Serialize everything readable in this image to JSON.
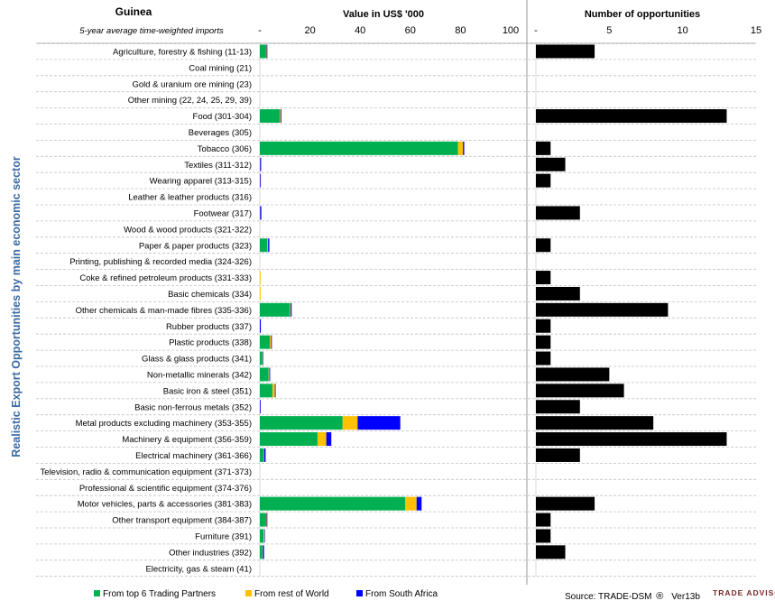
{
  "chart_data": {
    "type": "bar",
    "country": "Guinea",
    "subtitle": "5-year average time-weighted imports",
    "ylabel": "Realistic Export Opportunities by main economic sector",
    "categories": [
      "Agriculture, forestry & fishing (11-13)",
      "Coal mining (21)",
      "Gold & uranium ore mining (23)",
      "Other mining (22, 24, 25, 29, 39)",
      "Food (301-304)",
      "Beverages (305)",
      "Tobacco (306)",
      "Textiles (311-312)",
      "Wearing apparel (313-315)",
      "Leather & leather products (316)",
      "Footwear (317)",
      "Wood & wood products (321-322)",
      "Paper & paper products (323)",
      "Printing, publishing & recorded media (324-326)",
      "Coke & refined petroleum products (331-333)",
      "Basic chemicals (334)",
      "Other chemicals & man-made fibres (335-336)",
      "Rubber products (337)",
      "Plastic products (338)",
      "Glass & glass products (341)",
      "Non-metallic minerals (342)",
      "Basic iron & steel (351)",
      "Basic non-ferrous metals (352)",
      "Metal products excluding machinery (353-355)",
      "Machinery & equipment (356-359)",
      "Electrical machinery (361-366)",
      "Television, radio & communication equipment (371-373)",
      "Professional & scientific equipment (374-376)",
      "Motor vehicles, parts & accessories (381-383)",
      "Other transport equipment (384-387)",
      "Furniture (391)",
      "Other industries (392)",
      "Electricity, gas & steam (41)"
    ],
    "value_chart": {
      "title": "Value in US$ '000",
      "xlim": [
        0,
        100
      ],
      "ticks": [
        "-",
        "20",
        "40",
        "60",
        "80",
        "100"
      ],
      "stacked": true,
      "series": [
        {
          "name": "From top 6 Trading Partners",
          "color": "#00b050",
          "values": [
            2.5,
            0,
            0,
            0,
            8,
            0,
            79,
            0,
            0,
            0,
            0,
            0,
            3,
            0,
            0,
            0,
            12,
            0,
            4,
            1,
            3.5,
            5,
            0,
            33,
            23,
            1.5,
            0,
            0,
            58,
            2.5,
            1.5,
            1,
            0
          ]
        },
        {
          "name": "From rest of World",
          "color": "#ffc000",
          "values": [
            0.2,
            0,
            0,
            0,
            0.3,
            0,
            2,
            0.1,
            0.1,
            0,
            0.1,
            0,
            0.3,
            0,
            0.3,
            0.3,
            0.3,
            0,
            0.5,
            0.2,
            0.3,
            1,
            0,
            6,
            3.5,
            0.2,
            0,
            0,
            4.5,
            0.2,
            0.3,
            0.2,
            0
          ]
        },
        {
          "name": "From South Africa",
          "color": "#0000ff",
          "values": [
            0.3,
            0,
            0,
            0,
            0.3,
            0,
            0.5,
            0.4,
            0.3,
            0,
            0.5,
            0,
            0.5,
            0,
            0,
            0,
            0.4,
            0.4,
            0.3,
            0.2,
            0.3,
            0.3,
            0.3,
            17,
            2,
            0.6,
            0,
            0,
            2,
            0.3,
            0.2,
            0.5,
            0
          ]
        }
      ]
    },
    "count_chart": {
      "title": "Number of opportunities",
      "xlim": [
        0,
        15
      ],
      "ticks": [
        "-",
        "5",
        "10",
        "15"
      ],
      "color": "#000000",
      "values": [
        4,
        0,
        0,
        0,
        13,
        0,
        1,
        2,
        1,
        0,
        3,
        0,
        1,
        0,
        1,
        3,
        9,
        1,
        1,
        1,
        5,
        6,
        3,
        8,
        13,
        3,
        0,
        0,
        4,
        1,
        1,
        2,
        0
      ]
    },
    "legend_position": "bottom-left"
  },
  "footer": {
    "source": "Source: TRADE-DSM",
    "registered": "®",
    "version": "Ver13b",
    "logo_text": "TRADE ADVISORY"
  }
}
